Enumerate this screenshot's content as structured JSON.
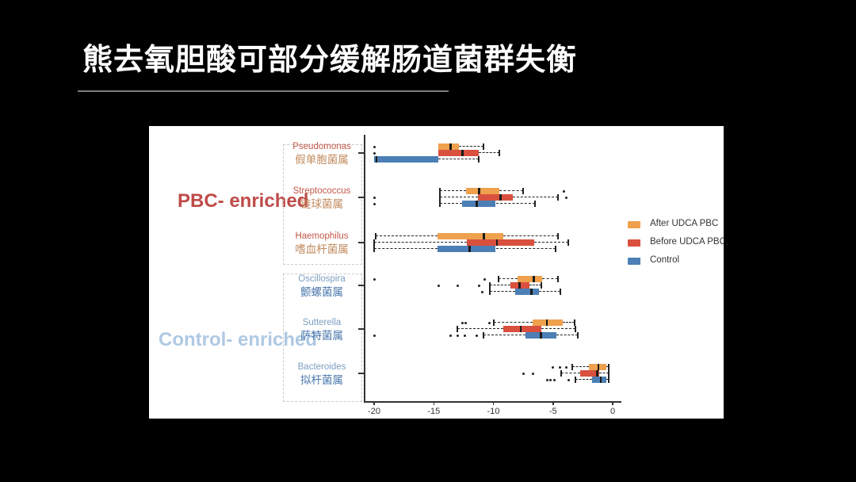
{
  "slide": {
    "title": "熊去氧胆酸可部分缓解肠道菌群失衡",
    "background": "#000000"
  },
  "panel": {
    "group_labels": [
      {
        "label": "PBC- enriched",
        "color": "#BE4B48"
      },
      {
        "label": "Control- enriched",
        "color": "#AFC9E3"
      }
    ]
  },
  "chart_data": {
    "type": "boxplot",
    "orientation": "horizontal",
    "title": "",
    "xlabel": "",
    "ylabel": "",
    "xlim": [
      -21,
      1
    ],
    "x_ticks": [
      -20,
      -15,
      -10,
      -5,
      0
    ],
    "grid": false,
    "legend_position": "right",
    "legend": [
      {
        "name": "After UDCA PBC",
        "color": "#EFA14D"
      },
      {
        "name": "Before UDCA PBC",
        "color": "#D9503F"
      },
      {
        "name": "Control",
        "color": "#4C7FB5"
      }
    ],
    "groups": [
      {
        "genus": "Pseudomonas",
        "genus_zh": "假单胞菌属",
        "enriched": "PBC",
        "name_color": "#C25749",
        "zh_color": "#C28B5E",
        "boxes": [
          {
            "series": "After UDCA PBC",
            "lo": -14.6,
            "q1": -14.6,
            "median": -13.6,
            "q3": -12.9,
            "hi": -10.8,
            "outliers": [
              -20
            ]
          },
          {
            "series": "Before UDCA PBC",
            "lo": -14.6,
            "q1": -14.6,
            "median": -12.6,
            "q3": -11.2,
            "hi": -9.5,
            "outliers": [
              -20
            ]
          },
          {
            "series": "Control",
            "lo": -20.0,
            "q1": -20.0,
            "median": -19.8,
            "q3": -14.6,
            "hi": -11.2,
            "outliers": []
          }
        ]
      },
      {
        "genus": "Streptococcus",
        "genus_zh": "链球菌属",
        "enriched": "PBC",
        "name_color": "#C25749",
        "zh_color": "#C28B5E",
        "boxes": [
          {
            "series": "After UDCA PBC",
            "lo": -14.5,
            "q1": -12.3,
            "median": -11.2,
            "q3": -9.5,
            "hi": -7.5,
            "outliers": [
              -4.1
            ]
          },
          {
            "series": "Before UDCA PBC",
            "lo": -14.5,
            "q1": -11.3,
            "median": -9.4,
            "q3": -8.4,
            "hi": -4.6,
            "outliers": [
              -20,
              -3.9
            ]
          },
          {
            "series": "Control",
            "lo": -14.5,
            "q1": -12.6,
            "median": -11.4,
            "q3": -9.8,
            "hi": -6.5,
            "outliers": [
              -20
            ]
          }
        ]
      },
      {
        "genus": "Haemophilus",
        "genus_zh": "嗜血杆菌属",
        "enriched": "PBC",
        "name_color": "#C25749",
        "zh_color": "#C28B5E",
        "boxes": [
          {
            "series": "After UDCA PBC",
            "lo": -19.9,
            "q1": -14.7,
            "median": -10.8,
            "q3": -9.2,
            "hi": -4.6,
            "outliers": []
          },
          {
            "series": "Before UDCA PBC",
            "lo": -20.0,
            "q1": -12.2,
            "median": -9.7,
            "q3": -6.6,
            "hi": -3.7,
            "outliers": []
          },
          {
            "series": "Control",
            "lo": -20.0,
            "q1": -14.7,
            "median": -12.0,
            "q3": -9.8,
            "hi": -4.8,
            "outliers": []
          }
        ]
      },
      {
        "genus": "Oscillospira",
        "genus_zh": "颤螺菌属",
        "enriched": "Control",
        "name_color": "#7C9FC1",
        "zh_color": "#4A77AC",
        "boxes": [
          {
            "series": "After UDCA PBC",
            "lo": -9.6,
            "q1": -8.0,
            "median": -6.6,
            "q3": -5.9,
            "hi": -4.6,
            "outliers": [
              -20,
              -10.7
            ]
          },
          {
            "series": "Before UDCA PBC",
            "lo": -10.3,
            "q1": -8.6,
            "median": -7.8,
            "q3": -7.0,
            "hi": -6.0,
            "outliers": [
              -14.6,
              -13.0,
              -11.2
            ]
          },
          {
            "series": "Control",
            "lo": -10.3,
            "q1": -8.2,
            "median": -6.8,
            "q3": -6.2,
            "hi": -4.4,
            "outliers": [
              -10.9
            ]
          }
        ]
      },
      {
        "genus": "Sutterella",
        "genus_zh": "萨特菌属",
        "enriched": "Control",
        "name_color": "#7C9FC1",
        "zh_color": "#4A77AC",
        "boxes": [
          {
            "series": "After UDCA PBC",
            "lo": -10.0,
            "q1": -6.7,
            "median": -5.5,
            "q3": -4.2,
            "hi": -3.2,
            "outliers": [
              -12.6,
              -12.3,
              -10.3
            ]
          },
          {
            "series": "Before UDCA PBC",
            "lo": -13.0,
            "q1": -9.2,
            "median": -7.7,
            "q3": -6.0,
            "hi": -3.1,
            "outliers": []
          },
          {
            "series": "Control",
            "lo": -10.8,
            "q1": -7.3,
            "median": -6.0,
            "q3": -4.7,
            "hi": -2.9,
            "outliers": [
              -20,
              -13.6,
              -13.0,
              -12.4,
              -11.4
            ]
          }
        ]
      },
      {
        "genus": "Bacteroides",
        "genus_zh": "拟杆菌属",
        "enriched": "Control",
        "name_color": "#7C9FC1",
        "zh_color": "#4A77AC",
        "boxes": [
          {
            "series": "After UDCA PBC",
            "lo": -3.4,
            "q1": -2.0,
            "median": -1.2,
            "q3": -0.5,
            "hi": -0.3,
            "outliers": [
              -5.0,
              -4.4,
              -3.9
            ]
          },
          {
            "series": "Before UDCA PBC",
            "lo": -4.3,
            "q1": -2.7,
            "median": -1.3,
            "q3": -1.1,
            "hi": -0.3,
            "outliers": [
              -7.5,
              -6.7
            ]
          },
          {
            "series": "Control",
            "lo": -3.1,
            "q1": -1.7,
            "median": -1.0,
            "q3": -0.5,
            "hi": -0.3,
            "outliers": [
              -5.5,
              -5.2,
              -4.9,
              -3.7
            ]
          }
        ]
      }
    ]
  }
}
